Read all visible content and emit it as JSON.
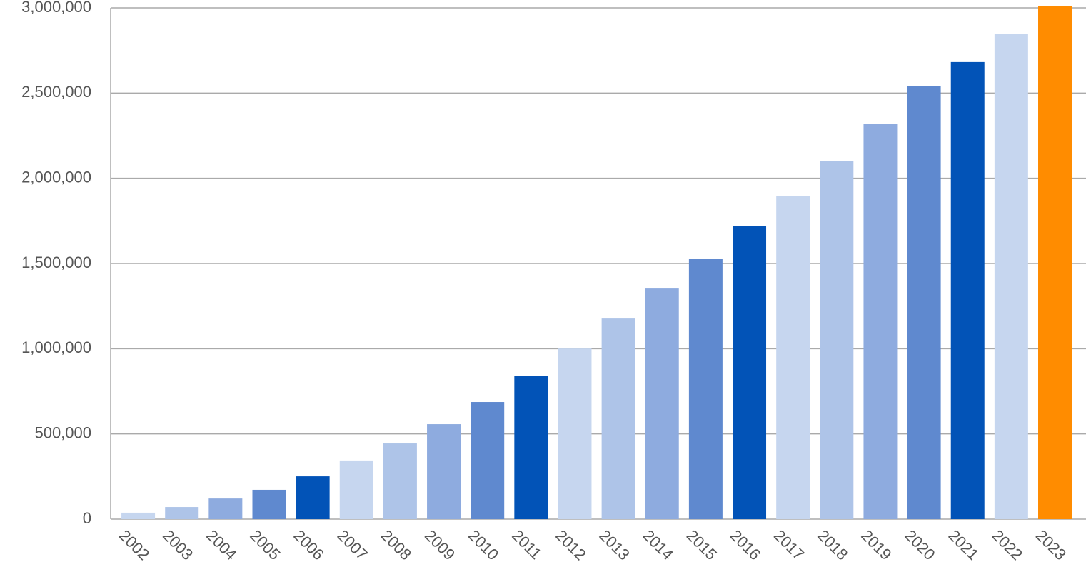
{
  "chart_data": {
    "type": "bar",
    "categories": [
      "2002",
      "2003",
      "2004",
      "2005",
      "2006",
      "2007",
      "2008",
      "2009",
      "2010",
      "2011",
      "2012",
      "2013",
      "2014",
      "2015",
      "2016",
      "2017",
      "2018",
      "2019",
      "2020",
      "2021",
      "2022",
      "2023"
    ],
    "values": [
      38000,
      71000,
      121000,
      172000,
      251000,
      344000,
      444000,
      557000,
      687000,
      842000,
      1001000,
      1177000,
      1353000,
      1529000,
      1718000,
      1894000,
      2103000,
      2321000,
      2543000,
      2682000,
      2845000,
      3012000
    ],
    "colors": [
      "#c6d6ef",
      "#aec4e8",
      "#8eabdf",
      "#5f89cf",
      "#0253b7",
      "#c6d6ef",
      "#aec4e8",
      "#8eabdf",
      "#5f89cf",
      "#0253b7",
      "#c6d6ef",
      "#aec4e8",
      "#8eabdf",
      "#5f89cf",
      "#0253b7",
      "#c6d6ef",
      "#aec4e8",
      "#8eabdf",
      "#5f89cf",
      "#0253b7",
      "#c6d6ef",
      "#ff8c00"
    ],
    "ylim": [
      0,
      3000000
    ],
    "yticks": [
      0,
      {
        "value": 500000,
        "label": "500,000"
      },
      {
        "value": 1000000,
        "label": "1,000,000"
      },
      {
        "value": 1500000,
        "label": "1,500,000"
      },
      {
        "value": 2000000,
        "label": "2,000,000"
      },
      {
        "value": 2500000,
        "label": "2,500,000"
      },
      {
        "value": 3000000,
        "label": "3,000,000"
      }
    ],
    "grid": true
  }
}
